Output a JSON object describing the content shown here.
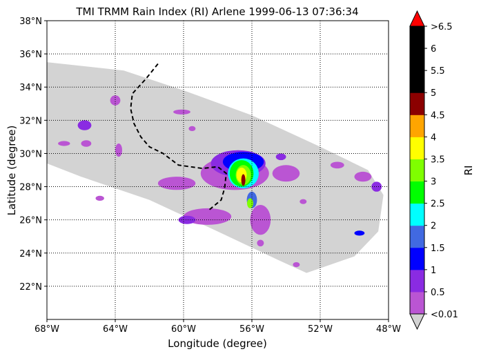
{
  "chart_data": {
    "type": "heatmap",
    "title": "TMI TRMM Rain Index (RI) Arlene 1999-06-13 07:36:34",
    "xlabel": "Longitude (degree)",
    "ylabel": "Latitude (degree)",
    "xlim": [
      -68,
      -48
    ],
    "ylim": [
      20,
      38
    ],
    "x_ticks": [
      {
        "value": -68,
        "label": "68°W"
      },
      {
        "value": -64,
        "label": "64°W"
      },
      {
        "value": -60,
        "label": "60°W"
      },
      {
        "value": -56,
        "label": "56°W"
      },
      {
        "value": -52,
        "label": "52°W"
      },
      {
        "value": -48,
        "label": "48°W"
      }
    ],
    "y_ticks": [
      {
        "value": 22,
        "label": "22°N"
      },
      {
        "value": 24,
        "label": "24°N"
      },
      {
        "value": 26,
        "label": "26°N"
      },
      {
        "value": 28,
        "label": "28°N"
      },
      {
        "value": 30,
        "label": "30°N"
      },
      {
        "value": 32,
        "label": "32°N"
      },
      {
        "value": 34,
        "label": "34°N"
      },
      {
        "value": 36,
        "label": "36°N"
      },
      {
        "value": 38,
        "label": "38°N"
      }
    ],
    "grid": true,
    "grid_style": "dotted",
    "colorbar": {
      "label": "RI",
      "bounds": [
        0.01,
        0.5,
        1,
        1.5,
        2,
        2.5,
        3,
        3.5,
        4,
        4.5,
        5,
        5.5,
        6,
        6.5
      ],
      "colors": [
        "#ba55d3",
        "#8a2be2",
        "#0000ff",
        "#4169e1",
        "#00ffff",
        "#00ff00",
        "#7fff00",
        "#ffff00",
        "#ffa500",
        "#8b0000",
        "#000000",
        "#000000",
        "#000000"
      ],
      "under_color": "#d3d3d3",
      "over_color": "#ff0000",
      "tick_labels": [
        "<0.01",
        "0.5",
        "1",
        "1.5",
        "2",
        "2.5",
        "3",
        "3.5",
        "4",
        "4.5",
        "5",
        "5.5",
        "6",
        ">6.5"
      ]
    },
    "swath": {
      "color": "#d3d3d3",
      "outline_lonlat": [
        [
          -68,
          35.5
        ],
        [
          -63.5,
          35.0
        ],
        [
          -60.0,
          33.8
        ],
        [
          -56.0,
          32.3
        ],
        [
          -52.0,
          30.4
        ],
        [
          -49.2,
          29.0
        ],
        [
          -48.3,
          27.5
        ],
        [
          -48.6,
          25.3
        ],
        [
          -50.0,
          23.8
        ],
        [
          -52.8,
          22.8
        ],
        [
          -54.5,
          23.6
        ],
        [
          -58.0,
          25.3
        ],
        [
          -62.0,
          27.2
        ],
        [
          -66.0,
          28.6
        ],
        [
          -68,
          29.4
        ]
      ]
    },
    "track": {
      "style": "dashed",
      "color": "#000000",
      "points_lonlat": [
        [
          -61.5,
          35.4
        ],
        [
          -62.2,
          34.5
        ],
        [
          -63.0,
          33.6
        ],
        [
          -63.1,
          32.7
        ],
        [
          -62.9,
          31.8
        ],
        [
          -62.5,
          31.0
        ],
        [
          -62.0,
          30.4
        ],
        [
          -61.2,
          30.0
        ],
        [
          -60.3,
          29.3
        ],
        [
          -58.9,
          29.1
        ],
        [
          -58.0,
          29.2
        ],
        [
          -57.5,
          28.8
        ],
        [
          -57.6,
          27.9
        ],
        [
          -57.8,
          27.2
        ],
        [
          -58.5,
          26.6
        ]
      ]
    },
    "rain_features": [
      {
        "lon": -57.0,
        "lat": 28.8,
        "rx": 2.0,
        "ry": 1.0,
        "value": 0.3
      },
      {
        "lon": -56.8,
        "lat": 29.4,
        "rx": 1.6,
        "ry": 0.8,
        "value": 0.6
      },
      {
        "lon": -56.5,
        "lat": 29.5,
        "rx": 1.2,
        "ry": 0.6,
        "value": 1.2
      },
      {
        "lon": -56.5,
        "lat": 28.8,
        "rx": 0.9,
        "ry": 0.9,
        "value": 2.2
      },
      {
        "lon": -56.6,
        "lat": 28.8,
        "rx": 0.7,
        "ry": 0.8,
        "value": 2.7
      },
      {
        "lon": -56.5,
        "lat": 28.7,
        "rx": 0.45,
        "ry": 0.6,
        "value": 3.2
      },
      {
        "lon": -56.6,
        "lat": 28.7,
        "rx": 0.3,
        "ry": 0.45,
        "value": 3.7
      },
      {
        "lon": -56.5,
        "lat": 28.4,
        "rx": 0.12,
        "ry": 0.35,
        "value": 4.7
      },
      {
        "lon": -56.0,
        "lat": 27.2,
        "rx": 0.3,
        "ry": 0.5,
        "value": 1.8
      },
      {
        "lon": -56.1,
        "lat": 27.0,
        "rx": 0.18,
        "ry": 0.3,
        "value": 3.2
      },
      {
        "lon": -54.0,
        "lat": 28.8,
        "rx": 0.8,
        "ry": 0.5,
        "value": 0.3
      },
      {
        "lon": -60.4,
        "lat": 28.2,
        "rx": 1.1,
        "ry": 0.4,
        "value": 0.3
      },
      {
        "lon": -58.6,
        "lat": 26.2,
        "rx": 1.4,
        "ry": 0.5,
        "value": 0.3
      },
      {
        "lon": -59.8,
        "lat": 26.0,
        "rx": 0.5,
        "ry": 0.25,
        "value": 0.8
      },
      {
        "lon": -55.5,
        "lat": 26.0,
        "rx": 0.6,
        "ry": 0.9,
        "value": 0.3
      },
      {
        "lon": -65.8,
        "lat": 31.7,
        "rx": 0.4,
        "ry": 0.3,
        "value": 0.8
      },
      {
        "lon": -65.7,
        "lat": 30.6,
        "rx": 0.3,
        "ry": 0.2,
        "value": 0.3
      },
      {
        "lon": -67.0,
        "lat": 30.6,
        "rx": 0.35,
        "ry": 0.15,
        "value": 0.3
      },
      {
        "lon": -64.9,
        "lat": 27.3,
        "rx": 0.25,
        "ry": 0.15,
        "value": 0.3
      },
      {
        "lon": -60.1,
        "lat": 32.5,
        "rx": 0.5,
        "ry": 0.15,
        "value": 0.3
      },
      {
        "lon": -64.0,
        "lat": 33.2,
        "rx": 0.3,
        "ry": 0.3,
        "value": 0.3
      },
      {
        "lon": -63.8,
        "lat": 30.2,
        "rx": 0.2,
        "ry": 0.4,
        "value": 0.3
      },
      {
        "lon": -59.5,
        "lat": 31.5,
        "rx": 0.2,
        "ry": 0.15,
        "value": 0.3
      },
      {
        "lon": -51.0,
        "lat": 29.3,
        "rx": 0.4,
        "ry": 0.2,
        "value": 0.3
      },
      {
        "lon": -49.5,
        "lat": 28.6,
        "rx": 0.5,
        "ry": 0.3,
        "value": 0.3
      },
      {
        "lon": -48.7,
        "lat": 28.0,
        "rx": 0.3,
        "ry": 0.3,
        "value": 0.8
      },
      {
        "lon": -49.7,
        "lat": 25.2,
        "rx": 0.3,
        "ry": 0.15,
        "value": 1.2
      },
      {
        "lon": -53.0,
        "lat": 27.1,
        "rx": 0.2,
        "ry": 0.15,
        "value": 0.3
      },
      {
        "lon": -53.4,
        "lat": 23.3,
        "rx": 0.2,
        "ry": 0.15,
        "value": 0.3
      },
      {
        "lon": -55.5,
        "lat": 24.6,
        "rx": 0.2,
        "ry": 0.2,
        "value": 0.3
      },
      {
        "lon": -54.3,
        "lat": 29.8,
        "rx": 0.3,
        "ry": 0.2,
        "value": 0.6
      }
    ]
  }
}
